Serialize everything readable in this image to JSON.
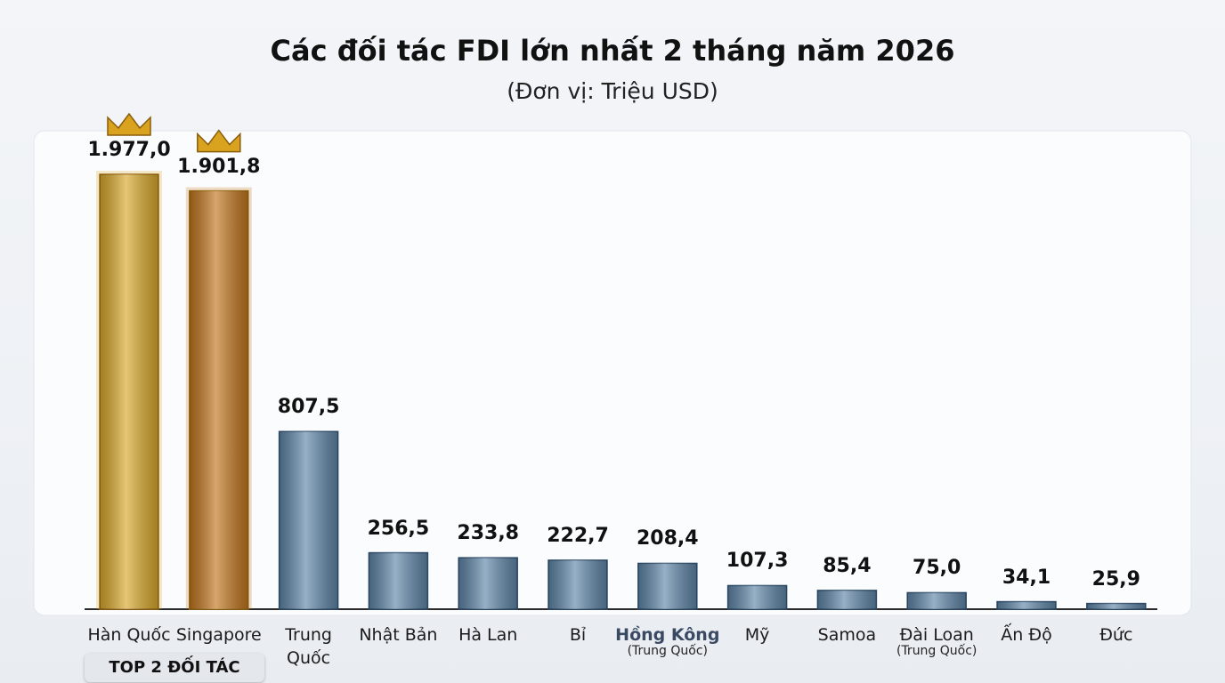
{
  "chart_data": {
    "type": "bar",
    "title": "Các đối tác FDI lớn nhất 2 tháng năm 2026",
    "subtitle": "(Đơn vị: Triệu USD)",
    "categories": [
      "Hàn Quốc",
      "Singapore",
      "Trung Quốc",
      "Nhật Bản",
      "Hà Lan",
      "Bỉ",
      "Hồng Kông",
      "Mỹ",
      "Samoa",
      "Đài Loan",
      "Ấn Độ",
      "Đức"
    ],
    "category_notes": [
      null,
      null,
      null,
      null,
      null,
      null,
      "(Trung Quốc)",
      null,
      null,
      "(Trung Quốc)",
      null,
      null
    ],
    "values": [
      1977.0,
      1901.8,
      807.5,
      256.5,
      233.8,
      222.7,
      208.4,
      107.3,
      85.4,
      75.0,
      34.1,
      25.9
    ],
    "value_labels": [
      "1.977,0",
      "1.901,8",
      "807,5",
      "256,5",
      "233,8",
      "222,7",
      "208,4",
      "107,3",
      "85,4",
      "75,0",
      "34,1",
      "25,9"
    ],
    "colors": [
      "#d9a92c",
      "#c2761f",
      "#5f86a8",
      "#5f86a8",
      "#5f86a8",
      "#5f86a8",
      "#5f86a8",
      "#5f86a8",
      "#5f86a8",
      "#5f86a8",
      "#5f86a8",
      "#5f86a8"
    ],
    "badge": "TOP 2 ĐỐI TÁC"
  }
}
